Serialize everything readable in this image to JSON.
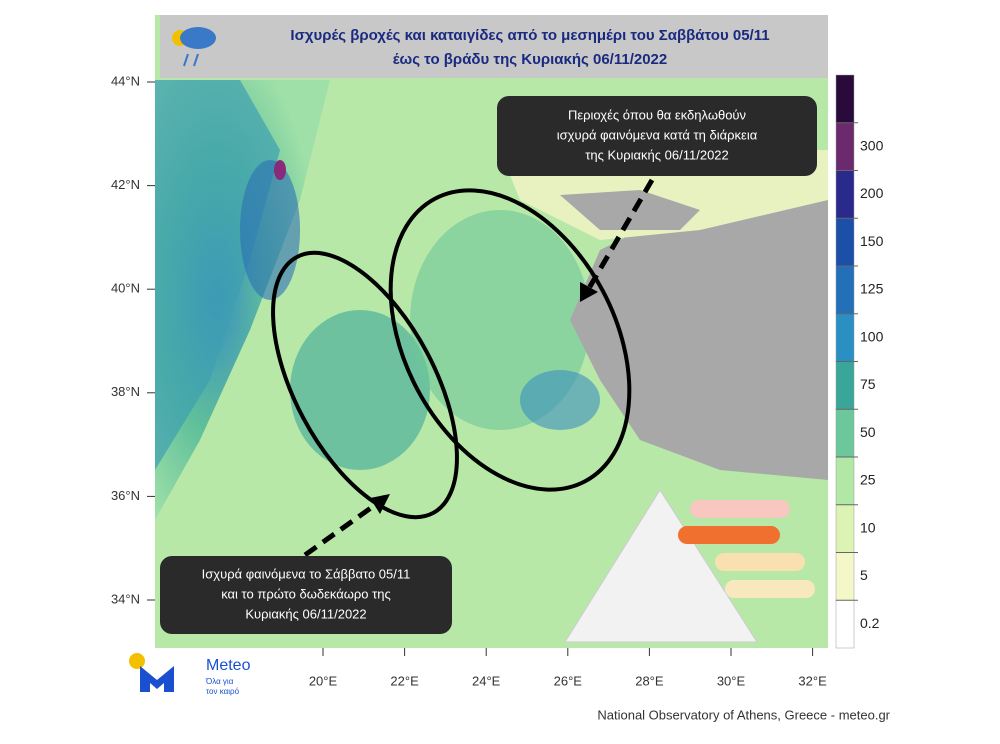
{
  "header": {
    "title_line1": "Ισχυρές βροχές και καταιγίδες από το μεσημέρι του Σαββάτου 05/11",
    "title_line2": "έως το βράδυ της Κυριακής 06/11/2022"
  },
  "map": {
    "lat_ticks": [
      {
        "value": 44,
        "label": "44°N"
      },
      {
        "value": 42,
        "label": "42°N"
      },
      {
        "value": 40,
        "label": "40°N"
      },
      {
        "value": 38,
        "label": "38°N"
      },
      {
        "value": 36,
        "label": "36°N"
      },
      {
        "value": 34,
        "label": "34°N"
      }
    ],
    "lon_ticks": [
      {
        "value": 20,
        "label": "20°E"
      },
      {
        "value": 22,
        "label": "22°E"
      },
      {
        "value": 24,
        "label": "24°E"
      },
      {
        "value": 26,
        "label": "26°E"
      },
      {
        "value": 28,
        "label": "28°E"
      },
      {
        "value": 30,
        "label": "30°E"
      },
      {
        "value": 32,
        "label": "32°E"
      }
    ]
  },
  "colorbar": {
    "levels": [
      0.2,
      5,
      10,
      25,
      50,
      75,
      100,
      125,
      150,
      200,
      300
    ],
    "colors": [
      "#ffffff",
      "#f4f7c8",
      "#dcf3b4",
      "#b2e8a6",
      "#6cc79a",
      "#3aa69a",
      "#2a8fc2",
      "#236fb8",
      "#1b4fa8",
      "#2a2a8c",
      "#6b2a6e",
      "#2a0a3a"
    ]
  },
  "callouts": {
    "top": [
      "Περιοχές όπου θα εκδηλωθούν",
      "ισχυρά φαινόμενα κατά τη διάρκεια",
      "της Κυριακής 06/11/2022"
    ],
    "bottom": [
      "Ισχυρά φαινόμενα το Σάββατο 05/11",
      "και το πρώτο δωδεκάωρο της",
      "Κυριακής 06/11/2022"
    ]
  },
  "logo": {
    "name": "Meteo",
    "tagline_1": "Όλα για",
    "tagline_2": "τον καιρό"
  },
  "footer": "National Observatory of Athens, Greece - meteo.gr"
}
